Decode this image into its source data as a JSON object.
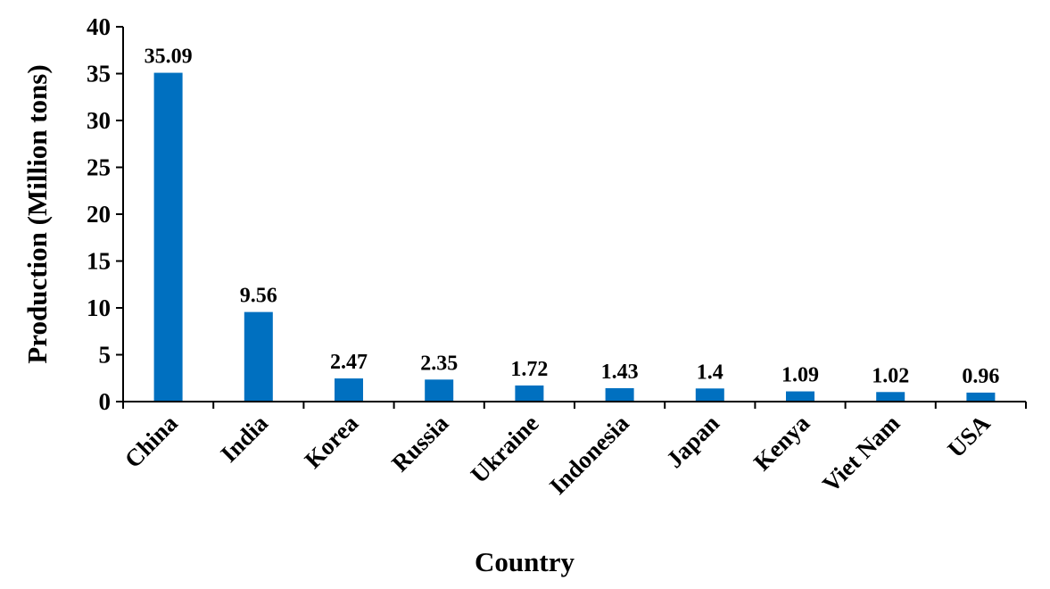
{
  "chart_data": {
    "type": "bar",
    "categories": [
      "China",
      "India",
      "Korea",
      "Russia",
      "Ukraine",
      "Indonesia",
      "Japan",
      "Kenya",
      "Viet Nam",
      "USA"
    ],
    "values": [
      35.09,
      9.56,
      2.47,
      2.35,
      1.72,
      1.43,
      1.4,
      1.09,
      1.02,
      0.96
    ],
    "value_labels": [
      "35.09",
      "9.56",
      "2.47",
      "2.35",
      "1.72",
      "1.43",
      "1.4",
      "1.09",
      "1.02",
      "0.96"
    ],
    "xlabel": "Country",
    "ylabel": "Production (Million tons)",
    "ylim": [
      0,
      40
    ],
    "yticks": [
      0,
      5,
      10,
      15,
      20,
      25,
      30,
      35,
      40
    ],
    "grid": false,
    "bar_color": "#0070C0"
  }
}
